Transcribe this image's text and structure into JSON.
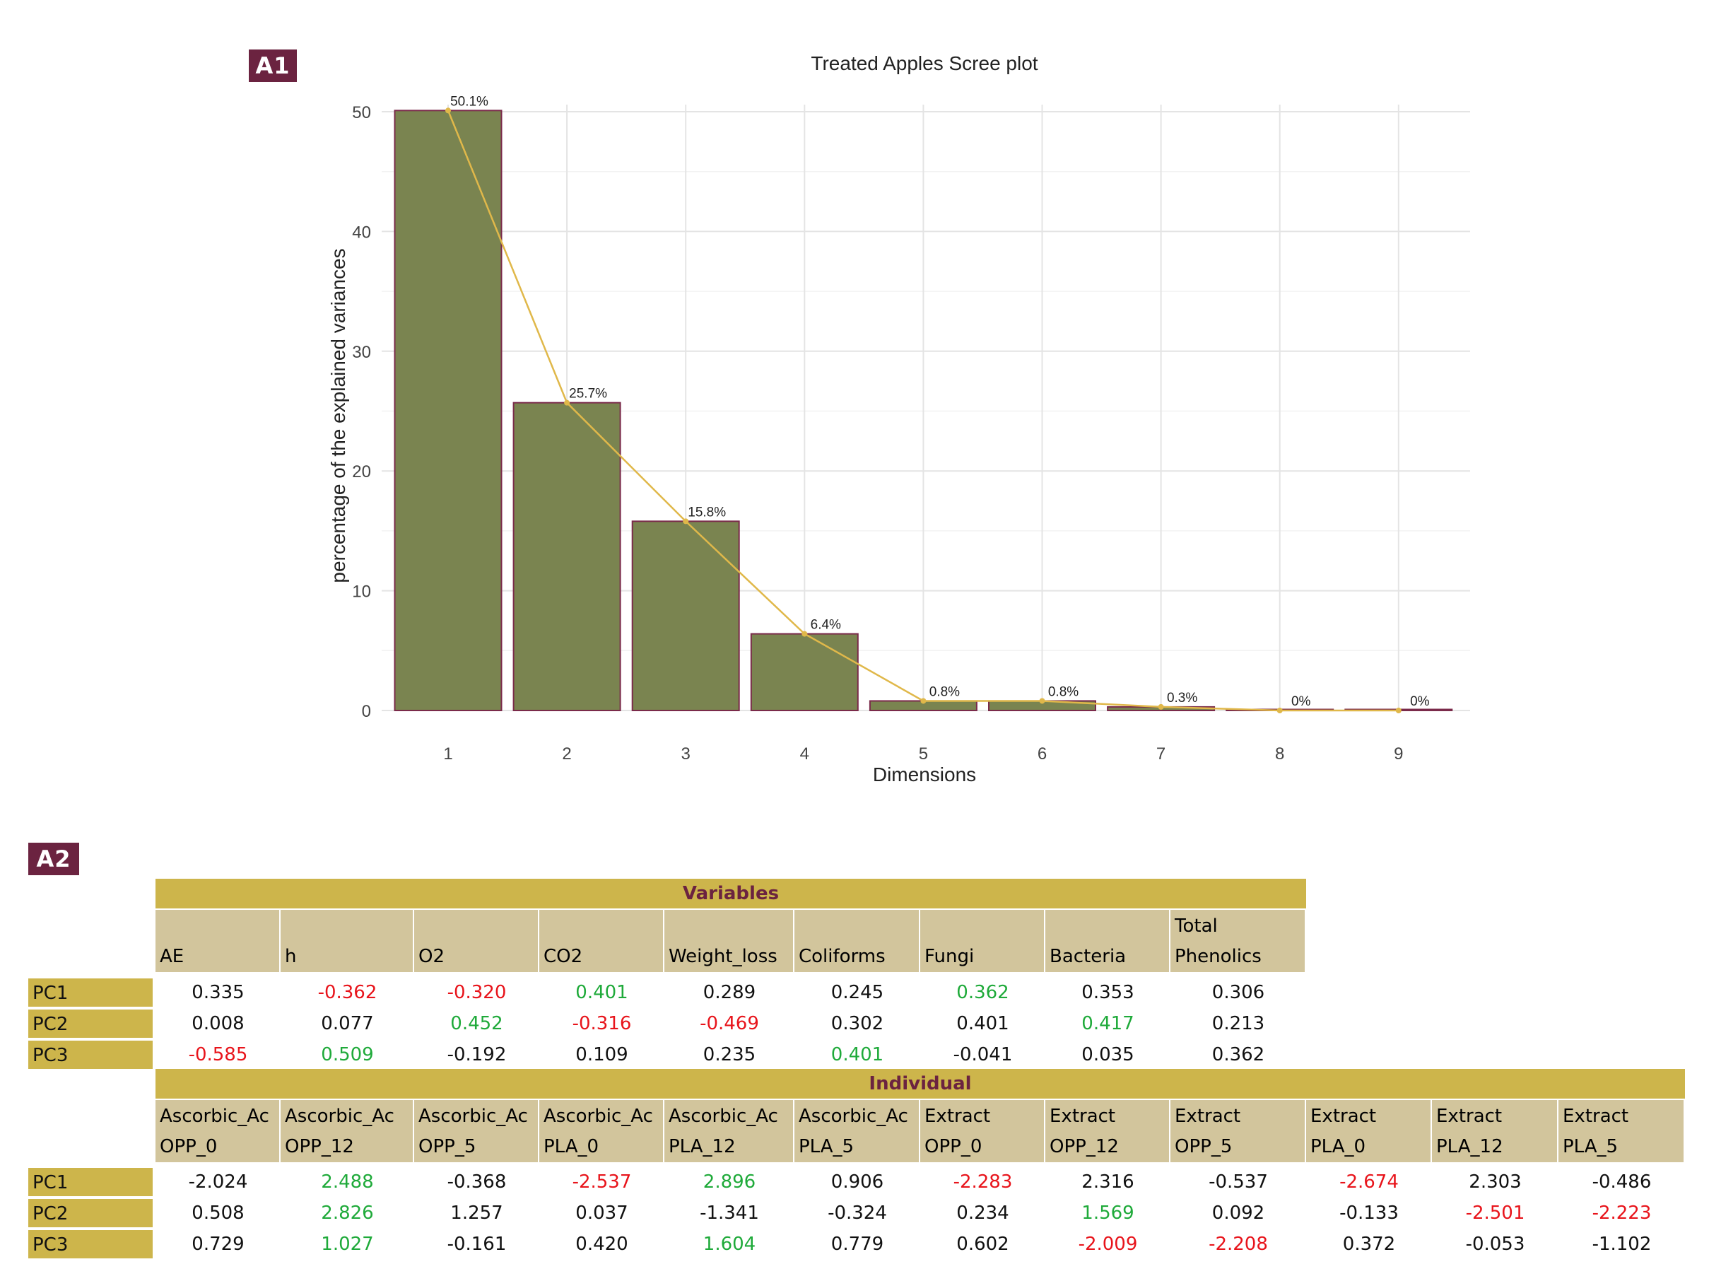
{
  "panel_a1": {
    "badge": "A1"
  },
  "panel_a2": {
    "badge": "A2"
  },
  "chart_data": {
    "type": "bar",
    "title": "Treated Apples Scree plot",
    "xlabel": "Dimensions",
    "ylabel": "percentage of the explained variances",
    "categories": [
      "1",
      "2",
      "3",
      "4",
      "5",
      "6",
      "7",
      "8",
      "9"
    ],
    "values": [
      50.1,
      25.7,
      15.8,
      6.4,
      0.8,
      0.8,
      0.3,
      0,
      0
    ],
    "labels": [
      "50.1%",
      "25.7%",
      "15.8%",
      "6.4%",
      "0.8%",
      "0.8%",
      "0.3%",
      "0%",
      "0%"
    ],
    "ylim": [
      0,
      50
    ],
    "yticks": [
      0,
      10,
      20,
      30,
      40,
      50
    ],
    "bar_color": "#7a8450",
    "bar_edge_color": "#7a2a4a",
    "line_color": "#e0b84a",
    "grid": true,
    "legend": "none"
  },
  "variables_table": {
    "title": "Variables",
    "columns": [
      "AE",
      "h",
      "O2",
      "CO2",
      "Weight_loss",
      "Coliforms",
      "Fungi",
      "Bacteria",
      "Total\nPhenolics"
    ],
    "rows": [
      {
        "label": "PC1",
        "values": [
          "0.335",
          "-0.362",
          "-0.320",
          "0.401",
          "0.289",
          "0.245",
          "0.362",
          "0.353",
          "0.306"
        ],
        "colors": [
          "",
          "neg",
          "neg",
          "pos",
          "",
          "",
          "pos",
          "",
          ""
        ]
      },
      {
        "label": "PC2",
        "values": [
          "0.008",
          "0.077",
          "0.452",
          "-0.316",
          "-0.469",
          "0.302",
          "0.401",
          "0.417",
          "0.213"
        ],
        "colors": [
          "",
          "",
          "pos",
          "neg",
          "neg",
          "",
          "",
          "pos",
          ""
        ]
      },
      {
        "label": "PC3",
        "values": [
          "-0.585",
          "0.509",
          "-0.192",
          "0.109",
          "0.235",
          "0.401",
          "-0.041",
          "0.035",
          "0.362"
        ],
        "colors": [
          "neg",
          "pos",
          "",
          "",
          "",
          "pos",
          "",
          "",
          ""
        ]
      }
    ]
  },
  "individual_table": {
    "title": "Individual",
    "columns": [
      "Ascorbic_Ac\nOPP_0",
      "Ascorbic_Ac\nOPP_12",
      "Ascorbic_Ac\nOPP_5",
      "Ascorbic_Ac\nPLA_0",
      "Ascorbic_Ac\nPLA_12",
      "Ascorbic_Ac\nPLA_5",
      "Extract\nOPP_0",
      "Extract\nOPP_12",
      "Extract\nOPP_5",
      "Extract\nPLA_0",
      "Extract\nPLA_12",
      "Extract\nPLA_5"
    ],
    "rows": [
      {
        "label": "PC1",
        "values": [
          "-2.024",
          "2.488",
          "-0.368",
          "-2.537",
          "2.896",
          "0.906",
          "-2.283",
          "2.316",
          "-0.537",
          "-2.674",
          "2.303",
          "-0.486"
        ],
        "colors": [
          "",
          "pos",
          "",
          "neg",
          "pos",
          "",
          "neg",
          "",
          "",
          "neg",
          "",
          ""
        ]
      },
      {
        "label": "PC2",
        "values": [
          "0.508",
          "2.826",
          "1.257",
          "0.037",
          "-1.341",
          "-0.324",
          "0.234",
          "1.569",
          "0.092",
          "-0.133",
          "-2.501",
          "-2.223"
        ],
        "colors": [
          "",
          "pos",
          "",
          "",
          "",
          "",
          "",
          "pos",
          "",
          "",
          "neg",
          "neg"
        ]
      },
      {
        "label": "PC3",
        "values": [
          "0.729",
          "1.027",
          "-0.161",
          "0.420",
          "1.604",
          "0.779",
          "0.602",
          "-2.009",
          "-2.208",
          "0.372",
          "-0.053",
          "-1.102"
        ],
        "colors": [
          "",
          "pos",
          "",
          "",
          "pos",
          "",
          "",
          "neg",
          "neg",
          "",
          "",
          ""
        ]
      }
    ]
  }
}
